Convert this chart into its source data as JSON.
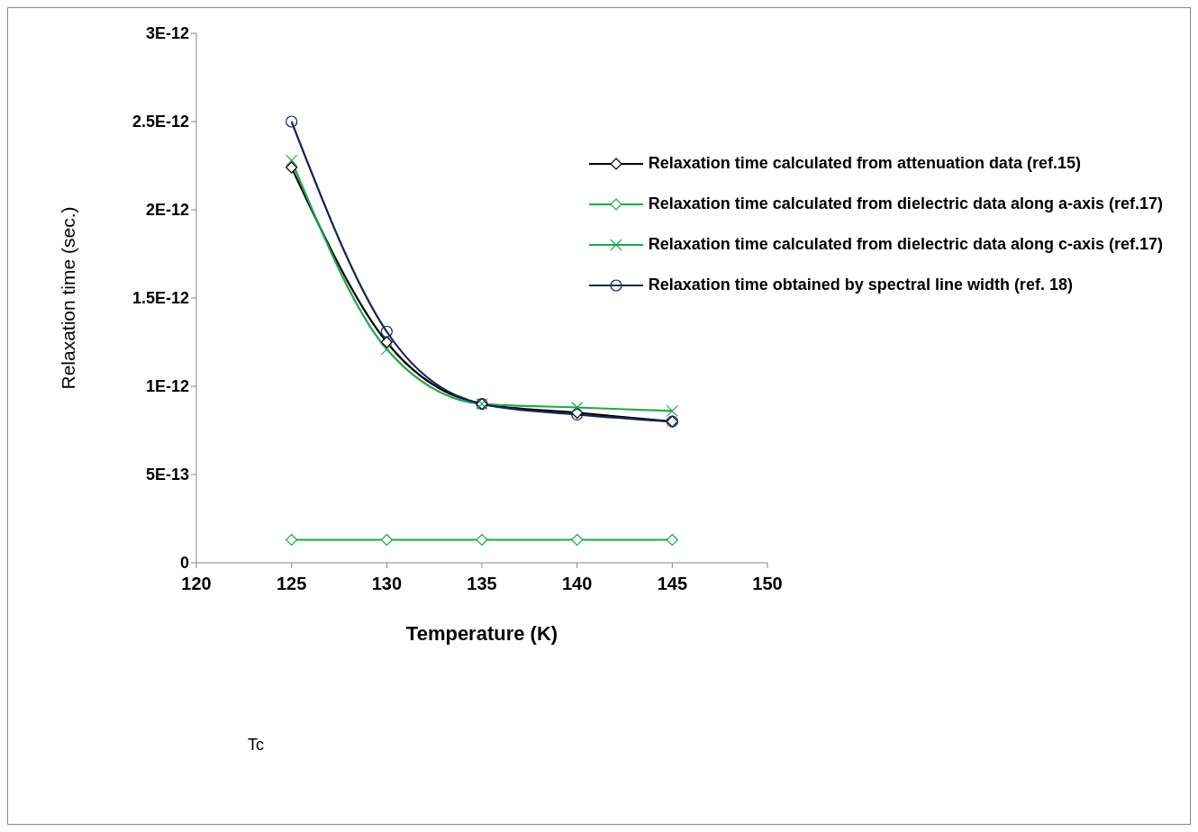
{
  "chart_data": {
    "type": "line",
    "xlabel": "Temperature (K)",
    "ylabel": "Relaxation time (sec.)",
    "x": [
      125,
      130,
      135,
      140,
      145
    ],
    "xlim": [
      120,
      150
    ],
    "xticks": [
      120,
      125,
      130,
      135,
      140,
      145,
      150
    ],
    "ylim": [
      0,
      3e-12
    ],
    "yticks": [
      0,
      {
        "value": 5e-13,
        "label": "5E-13"
      },
      {
        "value": 1e-12,
        "label": "1E-12"
      },
      {
        "value": 1.5e-12,
        "label": "1.5E-12"
      },
      {
        "value": 2e-12,
        "label": "2E-12"
      },
      {
        "value": 2.5e-12,
        "label": "2.5E-12"
      },
      {
        "value": 3e-12,
        "label": "3E-12"
      }
    ],
    "series": [
      {
        "name": "Relaxation time calculated from attenuation data (ref.15)",
        "color": "#000000",
        "marker": "diamond",
        "values": [
          2.24e-12,
          1.25e-12,
          9e-13,
          8.5e-13,
          8e-13
        ]
      },
      {
        "name": "Relaxation time calculated from dielectric data along a-axis (ref.17)",
        "color": "#1fa84a",
        "marker": "diamond",
        "values": [
          1.3e-13,
          1.3e-13,
          1.3e-13,
          1.3e-13,
          1.3e-13
        ]
      },
      {
        "name": "Relaxation time calculated from dielectric data along c-axis (ref.17)",
        "color": "#1fa84a",
        "marker": "cross",
        "values": [
          2.28e-12,
          1.21e-12,
          9e-13,
          8.8e-13,
          8.6e-13
        ]
      },
      {
        "name": "Relaxation time obtained by spectral line width (ref. 18)",
        "color": "#17245e",
        "marker": "circle",
        "values": [
          2.5e-12,
          1.31e-12,
          9e-13,
          8.4e-13,
          8e-13
        ]
      }
    ],
    "legend": "top right",
    "line_style": "solid",
    "annotations": [
      "Tc"
    ]
  }
}
